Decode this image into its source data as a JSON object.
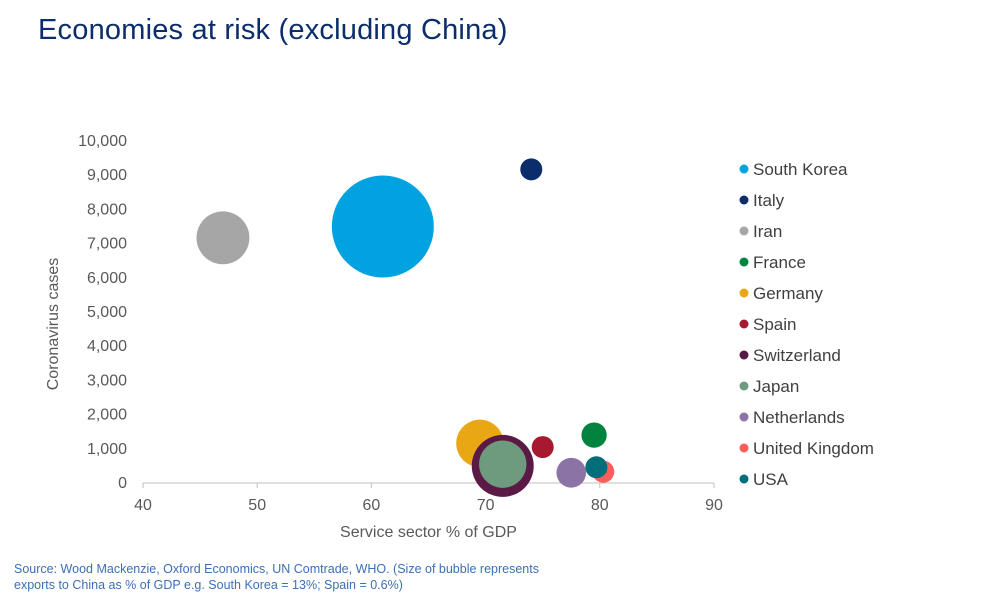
{
  "title": "Economies at risk (excluding China)",
  "source": "Source: Wood Mackenzie, Oxford Economics, UN Comtrade, WHO. (Size of bubble represents exports to China as % of GDP e.g. South Korea = 13%; Spain = 0.6%)",
  "chart_data": {
    "type": "bubble",
    "xlabel": "Service sector % of GDP",
    "ylabel": "Coronavirus  cases",
    "xlim": [
      40,
      90
    ],
    "ylim": [
      0,
      10000
    ],
    "x_ticks": [
      "40",
      "50",
      "60",
      "70",
      "80",
      "90"
    ],
    "y_ticks": [
      "0",
      "1,000",
      "2,000",
      "3,000",
      "4,000",
      "5,000",
      "6,000",
      "7,000",
      "8,000",
      "9,000",
      "10,000"
    ],
    "x_tick_values": [
      40,
      50,
      60,
      70,
      80,
      90
    ],
    "y_tick_values": [
      0,
      1000,
      2000,
      3000,
      4000,
      5000,
      6000,
      7000,
      8000,
      9000,
      10000
    ],
    "legend_position": "right",
    "series": [
      {
        "name": "South Korea",
        "color": "#00a3e0",
        "x": 61,
        "y": 7500,
        "size": 13
      },
      {
        "name": "Italy",
        "color": "#0b2d6b",
        "x": 74,
        "y": 9170,
        "size": 0.6
      },
      {
        "name": "Iran",
        "color": "#a6a6a6",
        "x": 47,
        "y": 7170,
        "size": 3.5
      },
      {
        "name": "France",
        "color": "#00833e",
        "x": 79.5,
        "y": 1400,
        "size": 0.8
      },
      {
        "name": "Germany",
        "color": "#e8a713",
        "x": 69.5,
        "y": 1160,
        "size": 2.8
      },
      {
        "name": "Spain",
        "color": "#a6192e",
        "x": 75,
        "y": 1050,
        "size": 0.6
      },
      {
        "name": "Switzerland",
        "color": "#5b1a45",
        "x": 71.5,
        "y": 500,
        "size": 4.8
      },
      {
        "name": "Japan",
        "color": "#6e9b7e",
        "x": 71.5,
        "y": 550,
        "size": 2.8
      },
      {
        "name": "Netherlands",
        "color": "#8c73a6",
        "x": 77.5,
        "y": 300,
        "size": 1.1
      },
      {
        "name": "United Kingdom",
        "color": "#ff5c5c",
        "x": 80.3,
        "y": 330,
        "size": 0.6
      },
      {
        "name": "USA",
        "color": "#006f7a",
        "x": 79.7,
        "y": 460,
        "size": 0.6
      }
    ]
  }
}
